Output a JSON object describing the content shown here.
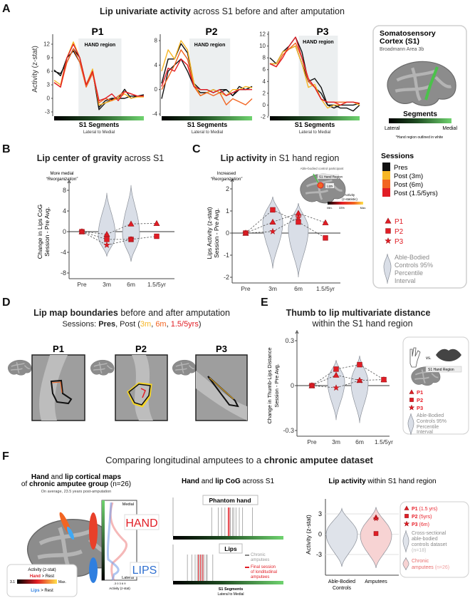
{
  "panel_labels": {
    "a": "A",
    "b": "B",
    "c": "C",
    "d": "D",
    "e": "E",
    "f": "F"
  },
  "panel_a": {
    "title_bold": "Lip univariate activity",
    "title_rest": " across S1 before and after amputation",
    "hand_region_label": "HAND region",
    "xlabel": "S1 Segments",
    "xsub": "Lateral to Medial",
    "ylabel": "Activity (z-stat)"
  },
  "legend_box": {
    "title_line1": "Somatosensory",
    "title_line2": "Cortex (S1)",
    "subtitle": "Broadmann Area 3b",
    "segments_title": "Segments",
    "lateral": "Lateral",
    "medial": "Medial",
    "note": "*Hand region outlined in white",
    "sessions_title": "Sessions",
    "sessions": [
      {
        "label": "Pres",
        "color": "#111111"
      },
      {
        "label": "Post (3m)",
        "color": "#f6b626"
      },
      {
        "label": "Post (6m)",
        "color": "#f26522"
      },
      {
        "label": "Post (1.5/5yrs)",
        "color": "#e11d25"
      }
    ],
    "participants": [
      {
        "label": "P1",
        "marker": "triangle"
      },
      {
        "label": "P2",
        "marker": "square"
      },
      {
        "label": "P3",
        "marker": "star"
      }
    ],
    "controls": [
      "Able-Bodied",
      "Controls 95%",
      "Percentile",
      "Interval"
    ]
  },
  "panel_b": {
    "title_bold": "Lip center of gravity",
    "title_rest": " across S1",
    "annot1": "More medial",
    "annot2": "“Reorganization”",
    "ylabel1": "Change in Lips CoG",
    "ylabel2": "Session - Pre Avg."
  },
  "panel_c": {
    "title_bold": "Lip activity",
    "title_rest": " in S1 hand region",
    "annot1": "Increased",
    "annot2": "“Reorganization”",
    "ylabel1": "Lips Activity (z-stat)",
    "ylabel2": "Session - Pre Avg.",
    "inset": {
      "caption": "Able-bodied control participant",
      "region": "S1 Hand Region",
      "lips": "Lips",
      "activity": "Activity",
      "zstat": "(z-statistic)",
      "min": "Min.",
      "mid": "33%",
      "max": "Max."
    }
  },
  "panel_d": {
    "title_bold": "Lip map boundaries",
    "title_rest": " before and after amputation",
    "sessions_prefix": "Sessions: ",
    "pres": "Pres",
    "post_open": ", Post (",
    "s3m": "3m",
    "sep": ", ",
    "s6m": "6m",
    "s15": "1.5/5yrs",
    "close": ")",
    "participants": [
      "P1",
      "P2",
      "P3"
    ]
  },
  "panel_e": {
    "title": "Thumb to lip multivariate distance",
    "subtitle": "within the S1 hand region",
    "ylabel1": "Change in Thumb-Lips Distance",
    "ylabel2": "Session - Pre Avg.",
    "legend": {
      "vs": "vs.",
      "region": "S1 Hand Region",
      "p1": "P1",
      "p2": "P2",
      "p3": "P3",
      "controls": [
        "Able-Bodied",
        "Controls 95%",
        "Percentile",
        "Interval"
      ]
    }
  },
  "panel_f": {
    "title_rest": "Comparing longitudinal amputees to a ",
    "title_bold": "chronic amputee dataset",
    "left": {
      "t1a": "Hand",
      "t1b": " and ",
      "t1c": "lip cortical maps",
      "t2a": "of ",
      "t2b": "chronic amputee group",
      "t2c": " (n=26)",
      "sub": "On average, 23.5 years post-amputation",
      "medial": "Medial",
      "lateral": "Lateral",
      "hand": "HAND",
      "lips": "LIPS",
      "xticks": "-3  0  3  6  9",
      "xlabel": "Activity (z-stat)",
      "cb_title": "Activity (z-stat)",
      "cb_hand": "Hand",
      "cb_rest": " > Rest",
      "cb_min": "3.1",
      "cb_max": "Max.",
      "cb_lips": "Lips"
    },
    "middle": {
      "t_a": "Hand",
      "t_b": " and ",
      "t_c": "lip CoG",
      "t_d": " across S1",
      "phantom": "Phantom hand",
      "lips": "Lips",
      "leg_chronic1": "Chronic",
      "leg_chronic2": "amputees",
      "leg_final1": "Final session",
      "leg_final2": "of londitudinal",
      "leg_final3": "amputees",
      "xlabel": "S1 Segments",
      "xsub": "Lateral to Medial"
    },
    "right": {
      "t_a": "Lip activity",
      "t_b": " within S1 hand region",
      "ylabel": "Activity (z-stat)",
      "cat1a": "Able-Bodied",
      "cat1b": "Controls",
      "cat2": "Amputees",
      "leg_p1": "P1",
      "leg_p1s": " (1.5 yrs)",
      "leg_p2": "P2",
      "leg_p2s": " (5yrs)",
      "leg_p3": "P3",
      "leg_p3s": " (6m)",
      "leg_ctrl": [
        "Cross-sectional",
        "able-bodied",
        "controls dataset",
        "(n=18)"
      ],
      "leg_chronic1": "Chronic",
      "leg_chronic2": "amputees",
      "leg_chronic_n": " (n=26)"
    }
  },
  "chart_data": [
    {
      "id": "A",
      "type": "line",
      "title": "Lip univariate activity across S1 before and after amputation",
      "xlabel": "S1 Segments (Lateral to Medial)",
      "ylabel": "Activity (z-stat)",
      "panels": [
        {
          "name": "P1",
          "ylim": [
            -3,
            12
          ],
          "yticks": [
            12,
            9,
            6,
            3,
            0,
            -3
          ],
          "hand_region": [
            3.8,
            10.5
          ],
          "series": [
            {
              "session": "Pres",
              "color": "#111111",
              "values": [
                6,
                5.5,
                8,
                11,
                9,
                3,
                6,
                -2,
                -0.5,
                0,
                0,
                0,
                0.5,
                0.5,
                0.5
              ]
            },
            {
              "session": "Pres",
              "color": "#111111",
              "values": [
                6.3,
                5,
                9,
                10.5,
                8,
                3,
                6.2,
                -2.5,
                -1,
                -0.2,
                0,
                2,
                0,
                0.5,
                0.8
              ]
            },
            {
              "session": "Post (3m)",
              "color": "#f6b626",
              "values": [
                4,
                3,
                9,
                12.5,
                9,
                3,
                6.5,
                -1.5,
                -1,
                -0.5,
                0,
                1,
                0,
                0.3,
                0.3
              ]
            },
            {
              "session": "Post (6m)",
              "color": "#f26522",
              "values": [
                3.5,
                2.5,
                8,
                11,
                8,
                2.5,
                5.5,
                -1,
                0,
                -0.5,
                0.5,
                1.5,
                1,
                0.5,
                0.5
              ]
            },
            {
              "session": "Post (1.5/5yrs)",
              "color": "#e11d25",
              "values": [
                3.5,
                2.5,
                9,
                12,
                9,
                3,
                6,
                -0.5,
                0,
                1,
                -0.5,
                1.5,
                1,
                0.5,
                0.5
              ]
            }
          ]
        },
        {
          "name": "P2",
          "ylim": [
            -4,
            8
          ],
          "yticks": [
            8,
            4,
            0,
            -4
          ],
          "hand_region": [
            4.3,
            10.6
          ],
          "series": [
            {
              "session": "Pres",
              "color": "#111111",
              "values": [
                1,
                5,
                5,
                7.5,
                6,
                1,
                0,
                0,
                -0.5,
                0,
                0,
                -1,
                0.5,
                0,
                0.5
              ]
            },
            {
              "session": "Pres",
              "color": "#111111",
              "values": [
                -1.5,
                3,
                4,
                5,
                3,
                0.5,
                -0.5,
                -0.5,
                0,
                -0.5,
                0,
                -1,
                0,
                0,
                0.5
              ]
            },
            {
              "session": "Post (3m)",
              "color": "#f6b626",
              "values": [
                3,
                6.5,
                5,
                8,
                6.5,
                1,
                -1,
                -0.5,
                0,
                -0.5,
                -1,
                0,
                0,
                0.5,
                0.3
              ]
            },
            {
              "session": "Post (6m)",
              "color": "#f26522",
              "values": [
                0,
                2,
                4,
                6.5,
                5,
                0.5,
                -1,
                -0.5,
                -1,
                -0.5,
                -2.5,
                -1.5,
                -2,
                -2.5,
                -1.5
              ]
            },
            {
              "session": "Post (1.5/5yrs)",
              "color": "#e11d25",
              "values": [
                0.5,
                3.5,
                3,
                5,
                4,
                0.5,
                0,
                0,
                -0.5,
                0,
                -1,
                -0.5,
                0,
                0,
                0
              ]
            }
          ]
        },
        {
          "name": "P3",
          "ylim": [
            -2,
            12
          ],
          "yticks": [
            12,
            10,
            8,
            6,
            4,
            2,
            0,
            -2
          ],
          "hand_region": [
            4.5,
            10.6
          ],
          "series": [
            {
              "session": "Pres",
              "color": "#111111",
              "values": [
                8,
                7,
                9,
                10,
                11.5,
                9,
                4,
                4.5,
                3,
                0,
                -0.5,
                0,
                0,
                0,
                0.3
              ]
            },
            {
              "session": "Pres",
              "color": "#111111",
              "values": [
                7,
                7,
                9,
                9.5,
                10,
                7,
                4,
                3,
                2,
                0,
                0,
                -0.5,
                -0.5,
                -1,
                0
              ]
            },
            {
              "session": "Post (3m)",
              "color": "#f6b626",
              "values": [
                7,
                7,
                9,
                9.5,
                10,
                7,
                3,
                3.5,
                1,
                -0.5,
                0,
                0,
                0.5,
                0.5,
                0
              ]
            },
            {
              "session": "Post (6m)",
              "color": "#f26522",
              "values": [
                7,
                6.5,
                8.5,
                9.5,
                10.5,
                8,
                4,
                3,
                1,
                0.5,
                0.5,
                0.5,
                0.5,
                0.5,
                0.3
              ]
            },
            {
              "session": "Post (1.5/5yrs)",
              "color": "#e11d25",
              "values": [
                7,
                6.5,
                8,
                10,
                11.5,
                8,
                4.5,
                3,
                1,
                0.5,
                0.5,
                0,
                0.5,
                0.5,
                0.3
              ]
            }
          ]
        }
      ]
    },
    {
      "id": "B",
      "type": "scatter",
      "title": "Lip center of gravity across S1",
      "ylabel": "Change in Lips CoG Session - Pre Avg.",
      "categories": [
        "Pre",
        "3m",
        "6m",
        "1.5/5yr"
      ],
      "ylim": [
        -8,
        8
      ],
      "yticks": [
        8,
        4,
        0,
        -4,
        -8
      ],
      "violins": [
        {
          "category": "3m",
          "range": [
            -4.8,
            7.5
          ],
          "mode": -0.8
        },
        {
          "category": "6m",
          "range": [
            -5.8,
            9
          ],
          "mode": -0.5
        }
      ],
      "series": [
        {
          "name": "P1",
          "marker": "triangle",
          "values": [
            0,
            -0.5,
            1.5,
            1.6
          ]
        },
        {
          "name": "P2",
          "marker": "square",
          "values": [
            0,
            -1.5,
            -1.5,
            -0.9
          ]
        },
        {
          "name": "P3",
          "marker": "star",
          "values": [
            0,
            -2.6,
            -1.5,
            null
          ]
        }
      ]
    },
    {
      "id": "C",
      "type": "scatter",
      "title": "Lip activity in S1 hand region",
      "ylabel": "Lips Activity (z-stat) Session - Pre Avg.",
      "categories": [
        "Pre",
        "3m",
        "6m",
        "1.5/5yr"
      ],
      "ylim": [
        -2,
        2
      ],
      "yticks": [
        2,
        1,
        0,
        -1,
        -2
      ],
      "violins": [
        {
          "category": "3m",
          "range": [
            -1.6,
            1.65
          ],
          "mode": 0.5
        },
        {
          "category": "6m",
          "range": [
            -2,
            1.35
          ],
          "mode": 0.2
        }
      ],
      "series": [
        {
          "name": "P1",
          "marker": "triangle",
          "values": [
            0,
            0.5,
            0.9,
            0.47
          ]
        },
        {
          "name": "P2",
          "marker": "square",
          "values": [
            0,
            1.05,
            0.5,
            -0.22
          ]
        },
        {
          "name": "P3",
          "marker": "star",
          "values": [
            0,
            0.07,
            0.7,
            null
          ]
        }
      ]
    },
    {
      "id": "E",
      "type": "scatter",
      "title": "Thumb to lip multivariate distance within the S1 hand region",
      "ylabel": "Change in Thumb-Lips Distance Session - Pre Avg.",
      "categories": [
        "Pre",
        "3m",
        "6m",
        "1.5/5yr"
      ],
      "ylim": [
        -0.3,
        0.3
      ],
      "yticks": [
        0.3,
        0,
        -0.3
      ],
      "violins": [
        {
          "category": "3m",
          "range": [
            -0.23,
            0.17
          ],
          "mode": 0.03
        },
        {
          "category": "6m",
          "range": [
            -0.25,
            0.2
          ],
          "mode": 0.02
        }
      ],
      "series": [
        {
          "name": "P1",
          "marker": "triangle",
          "values": [
            0,
            0.07,
            0.035,
            0.04
          ]
        },
        {
          "name": "P2",
          "marker": "square",
          "values": [
            0,
            0.11,
            0.14,
            0.04
          ]
        },
        {
          "name": "P3",
          "marker": "star",
          "values": [
            0,
            -0.015,
            0.035,
            null
          ]
        }
      ]
    },
    {
      "id": "F_middle",
      "type": "lines",
      "title": "Hand and lip CoG across S1",
      "xlabel": "S1 Segments (Lateral to Medial, 0-1)",
      "phantom_hand": {
        "chronic": [
          0.35,
          0.41,
          0.44,
          0.47,
          0.5,
          0.52,
          0.54,
          0.55,
          0.57,
          0.6,
          0.63,
          0.72
        ],
        "final": [
          0.5,
          0.51
        ]
      },
      "lips": {
        "chronic": [
          0.13,
          0.17,
          0.2,
          0.22,
          0.24,
          0.26,
          0.28,
          0.3,
          0.31,
          0.36
        ],
        "final": [
          0.23,
          0.25,
          0.27
        ]
      }
    },
    {
      "id": "F_right",
      "type": "scatter",
      "title": "Lip activity within S1 hand region",
      "ylabel": "Activity (z-stat)",
      "categories": [
        "Able-Bodied Controls",
        "Amputees"
      ],
      "ylim": [
        -5,
        5
      ],
      "yticks": [
        3,
        0,
        -3
      ],
      "violins": [
        {
          "category": "Able-Bodied Controls",
          "range": [
            -4.8,
            3.8
          ],
          "mode": 0,
          "color": "#dfe3ea"
        },
        {
          "category": "Amputees",
          "range": [
            -5,
            4
          ],
          "mode": -0.2,
          "color": "#f7d3d3"
        }
      ],
      "points": [
        {
          "name": "P1 (1.5 yrs)",
          "marker": "triangle",
          "category": "Amputees",
          "value": 2.5
        },
        {
          "name": "P2 (5yrs)",
          "marker": "square",
          "category": "Amputees",
          "value": 0.1
        },
        {
          "name": "P3 (6m)",
          "marker": "star",
          "category": "Amputees",
          "value": 2.3
        }
      ]
    }
  ]
}
